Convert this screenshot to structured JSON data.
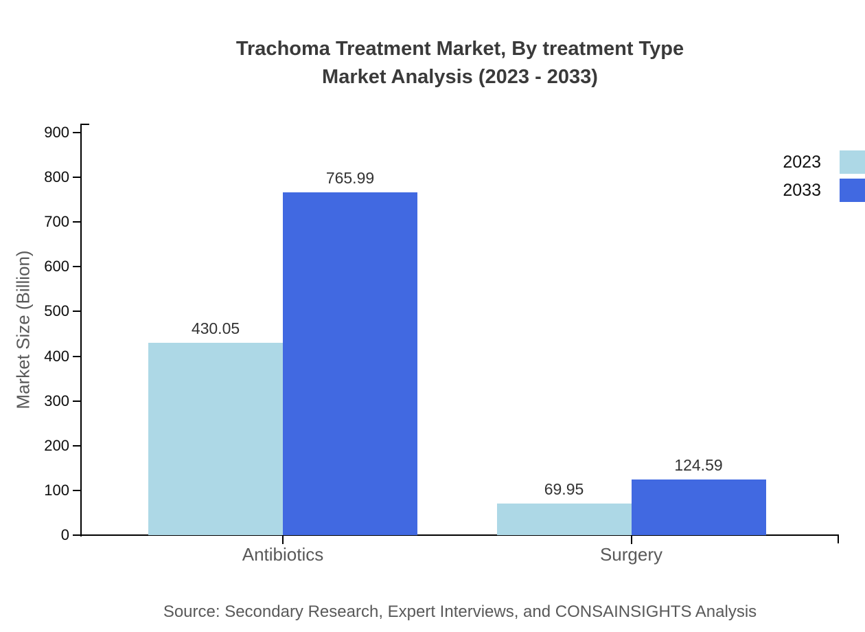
{
  "title": {
    "line1": "Trachoma Treatment Market, By treatment Type",
    "line2": "Market Analysis (2023 - 2033)"
  },
  "source": "Source: Secondary Research, Expert Interviews, and CONSAINSIGHTS Analysis",
  "legend": {
    "items": [
      {
        "label": "2023",
        "color": "#ADD8E6"
      },
      {
        "label": "2033",
        "color": "#4169E1"
      }
    ]
  },
  "chart_data": {
    "type": "bar",
    "categories": [
      "Antibiotics",
      "Surgery"
    ],
    "series": [
      {
        "name": "2023",
        "color": "#ADD8E6",
        "values": [
          430.05,
          69.95
        ]
      },
      {
        "name": "2033",
        "color": "#4169E1",
        "values": [
          765.99,
          124.59
        ]
      }
    ],
    "title": "Trachoma Treatment Market, By treatment Type Market Analysis (2023 - 2033)",
    "xlabel": "",
    "ylabel": "Market Size (Billion)",
    "ylim": [
      0,
      900
    ],
    "yticks": [
      0,
      100,
      200,
      300,
      400,
      500,
      600,
      700,
      800,
      900
    ],
    "grid": false,
    "legend_position": "top-right",
    "value_labels": true,
    "value_label_decimals": 2
  },
  "colors": {
    "axis": "#000000",
    "title_text": "#3a3a3a",
    "tick_label_text": "#0d0d0d",
    "category_text": "#595959",
    "value_label_text": "#333333",
    "legend_text": "#111111",
    "source_text": "#595959",
    "background": "#ffffff",
    "series_2023": "#ADD8E6",
    "series_2033": "#4169E1"
  }
}
